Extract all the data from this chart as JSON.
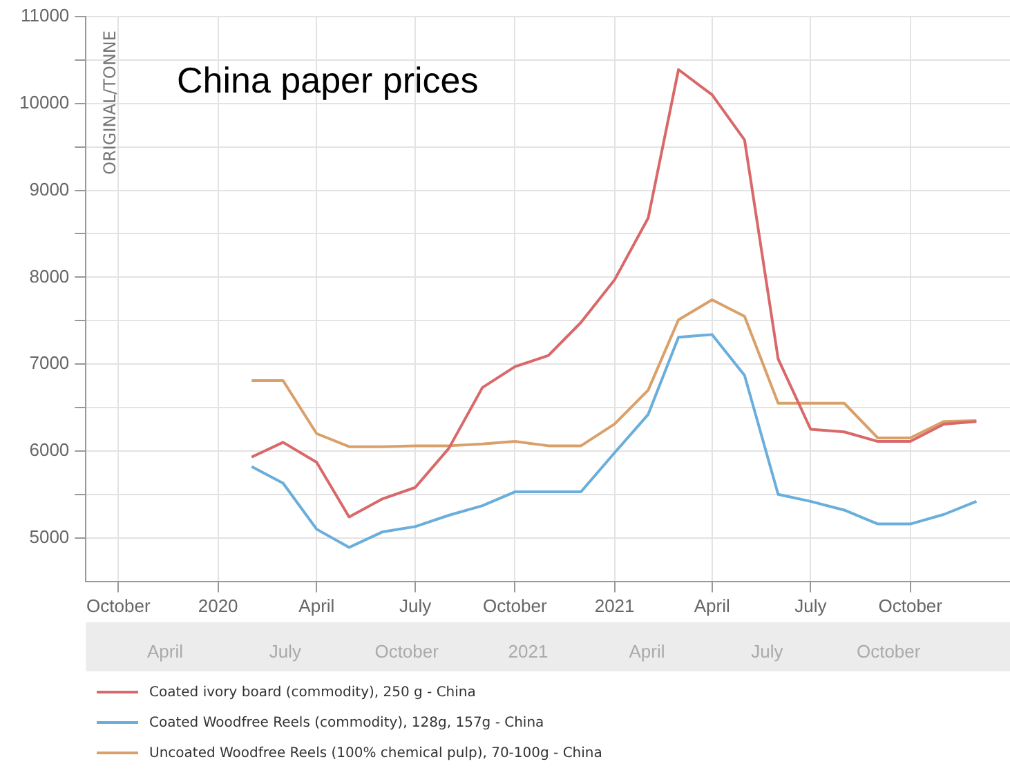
{
  "chart_data": {
    "type": "line",
    "title": "China paper prices",
    "ylabel": "ORIGINAL/TONNE",
    "x": [
      "2020-02",
      "2020-03",
      "2020-04",
      "2020-05",
      "2020-06",
      "2020-07",
      "2020-08",
      "2020-09",
      "2020-10",
      "2020-11",
      "2020-12",
      "2021-01",
      "2021-02",
      "2021-03",
      "2021-04",
      "2021-05",
      "2021-06",
      "2021-07",
      "2021-08",
      "2021-09",
      "2021-10",
      "2021-11",
      "2021-12"
    ],
    "series": [
      {
        "name": "Coated ivory board (commodity), 250 g - China",
        "color": "#d9686a",
        "values": [
          5930,
          6100,
          5870,
          5240,
          5450,
          5580,
          6030,
          6730,
          6970,
          7100,
          7480,
          7970,
          8680,
          10390,
          10100,
          9580,
          7060,
          6250,
          6220,
          6110,
          6110,
          6310,
          6340
        ]
      },
      {
        "name": "Coated Woodfree Reels (commodity), 128g, 157g - China",
        "color": "#6aaedc",
        "values": [
          5820,
          5630,
          5100,
          4890,
          5070,
          5130,
          5260,
          5370,
          5530,
          5530,
          5530,
          5980,
          6420,
          7310,
          7340,
          6870,
          5500,
          5420,
          5320,
          5160,
          5160,
          5270,
          5420
        ]
      },
      {
        "name": "Uncoated Woodfree Reels (100% chemical pulp), 70-100g - China",
        "color": "#d9a06a",
        "values": [
          6810,
          6810,
          6200,
          6050,
          6050,
          6060,
          6060,
          6080,
          6110,
          6060,
          6060,
          6310,
          6700,
          7510,
          7740,
          7550,
          6550,
          6550,
          6550,
          6150,
          6150,
          6340,
          6350
        ]
      }
    ],
    "xlim": [
      "2019-09-01",
      "2022-01-01"
    ],
    "xticks": [
      {
        "value": "2019-10",
        "label": "October"
      },
      {
        "value": "2020-01",
        "label": "2020"
      },
      {
        "value": "2020-04",
        "label": "April"
      },
      {
        "value": "2020-07",
        "label": "July"
      },
      {
        "value": "2020-10",
        "label": "October"
      },
      {
        "value": "2021-01",
        "label": "2021"
      },
      {
        "value": "2021-04",
        "label": "April"
      },
      {
        "value": "2021-07",
        "label": "July"
      },
      {
        "value": "2021-10",
        "label": "October"
      }
    ],
    "x2lim": [
      "2020-02-01",
      "2022-01-01"
    ],
    "x2ticks": [
      {
        "value": "2020-04",
        "label": "April"
      },
      {
        "value": "2020-07",
        "label": "July"
      },
      {
        "value": "2020-10",
        "label": "October"
      },
      {
        "value": "2021-01",
        "label": "2021"
      },
      {
        "value": "2021-04",
        "label": "April"
      },
      {
        "value": "2021-07",
        "label": "July"
      },
      {
        "value": "2021-10",
        "label": "October"
      }
    ],
    "ylim": [
      4500,
      11000
    ],
    "yticks": [
      5000,
      {
        "value": 5500,
        "label": null
      },
      6000,
      {
        "value": 6500,
        "label": null
      },
      7000,
      {
        "value": 7500,
        "label": null
      },
      8000,
      {
        "value": 8500,
        "label": null
      },
      9000,
      {
        "value": 9500,
        "label": null
      },
      10000,
      {
        "value": 10500,
        "label": null
      },
      11000
    ],
    "grid": true,
    "legend": "bottom",
    "marker": "none",
    "line_style": "solid"
  }
}
